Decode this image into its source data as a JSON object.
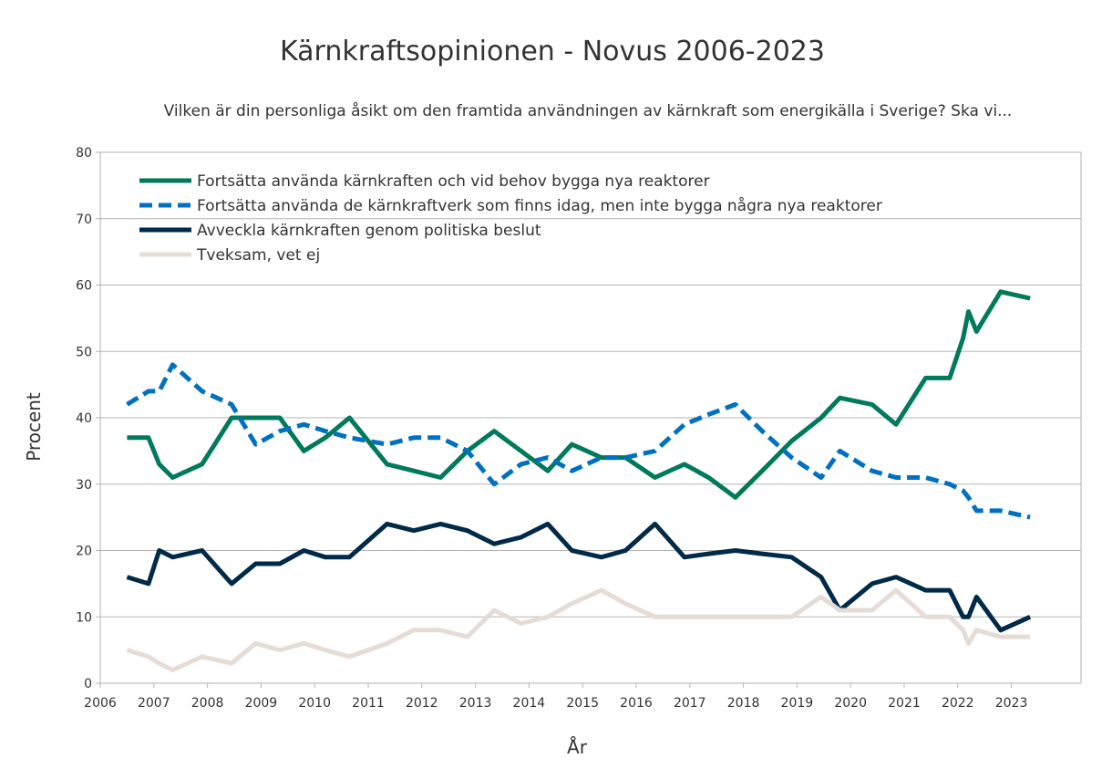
{
  "chart_data": {
    "type": "line",
    "title": "Kärnkraftsopinionen - Novus 2006-2023",
    "subtitle": "Vilken är din personliga åsikt om den framtida användningen av kärnkraft som energikälla i Sverige? Ska vi...",
    "xlabel": "År",
    "ylabel": "Procent",
    "xlim": [
      2006,
      2024.3
    ],
    "ylim": [
      0,
      80
    ],
    "xticks": [
      2006,
      2007,
      2008,
      2009,
      2010,
      2011,
      2012,
      2013,
      2014,
      2015,
      2016,
      2017,
      2018,
      2019,
      2020,
      2021,
      2022,
      2023
    ],
    "yticks": [
      0,
      10,
      20,
      30,
      40,
      50,
      60,
      70,
      80
    ],
    "grid": "horizontal",
    "legend_position": "top-left",
    "series": [
      {
        "name": "Fortsätta använda kärnkraften och vid behov bygga nya reaktorer",
        "color": "#007a5a",
        "style": "solid",
        "points": [
          [
            2006.5,
            37
          ],
          [
            2006.9,
            37
          ],
          [
            2007.1,
            33
          ],
          [
            2007.35,
            31
          ],
          [
            2007.9,
            33
          ],
          [
            2008.45,
            40
          ],
          [
            2008.9,
            40
          ],
          [
            2009.35,
            40
          ],
          [
            2009.8,
            35
          ],
          [
            2010.2,
            37
          ],
          [
            2010.65,
            40
          ],
          [
            2011.35,
            33
          ],
          [
            2011.85,
            32
          ],
          [
            2012.35,
            31
          ],
          [
            2012.85,
            35
          ],
          [
            2013.35,
            38
          ],
          [
            2013.85,
            35
          ],
          [
            2014.35,
            32
          ],
          [
            2014.8,
            36
          ],
          [
            2015.35,
            34
          ],
          [
            2015.8,
            34
          ],
          [
            2016.35,
            31
          ],
          [
            2016.9,
            33
          ],
          [
            2017.35,
            31
          ],
          [
            2017.85,
            28
          ],
          [
            2018.35,
            32
          ],
          [
            2018.9,
            36.5
          ],
          [
            2019.45,
            40
          ],
          [
            2019.8,
            43
          ],
          [
            2020.4,
            42
          ],
          [
            2020.85,
            39
          ],
          [
            2021.4,
            46
          ],
          [
            2021.85,
            46
          ],
          [
            2022.1,
            52
          ],
          [
            2022.2,
            56
          ],
          [
            2022.35,
            53
          ],
          [
            2022.8,
            59
          ],
          [
            2023.35,
            58
          ]
        ]
      },
      {
        "name": "Fortsätta använda de kärnkraftverk som finns idag, men inte bygga några nya reaktorer",
        "color": "#0070c0",
        "style": "dashed",
        "points": [
          [
            2006.5,
            42
          ],
          [
            2006.9,
            44
          ],
          [
            2007.1,
            44
          ],
          [
            2007.35,
            48
          ],
          [
            2007.9,
            44
          ],
          [
            2008.45,
            42
          ],
          [
            2008.9,
            36
          ],
          [
            2009.35,
            38
          ],
          [
            2009.8,
            39
          ],
          [
            2010.2,
            38
          ],
          [
            2010.65,
            37
          ],
          [
            2011.35,
            36
          ],
          [
            2011.85,
            37
          ],
          [
            2012.35,
            37
          ],
          [
            2012.85,
            35
          ],
          [
            2013.35,
            30
          ],
          [
            2013.85,
            33
          ],
          [
            2014.35,
            34
          ],
          [
            2014.8,
            32
          ],
          [
            2015.35,
            34
          ],
          [
            2015.8,
            34
          ],
          [
            2016.35,
            35
          ],
          [
            2016.9,
            39
          ],
          [
            2017.35,
            40.5
          ],
          [
            2017.85,
            42
          ],
          [
            2018.35,
            38
          ],
          [
            2018.9,
            34
          ],
          [
            2019.45,
            31
          ],
          [
            2019.8,
            35
          ],
          [
            2020.4,
            32
          ],
          [
            2020.85,
            31
          ],
          [
            2021.4,
            31
          ],
          [
            2021.85,
            30
          ],
          [
            2022.1,
            29
          ],
          [
            2022.2,
            28
          ],
          [
            2022.35,
            26
          ],
          [
            2022.8,
            26
          ],
          [
            2023.35,
            25
          ]
        ]
      },
      {
        "name": "Avveckla kärnkraften genom politiska beslut",
        "color": "#002a48",
        "style": "solid",
        "points": [
          [
            2006.5,
            16
          ],
          [
            2006.9,
            15
          ],
          [
            2007.1,
            20
          ],
          [
            2007.35,
            19
          ],
          [
            2007.9,
            20
          ],
          [
            2008.45,
            15
          ],
          [
            2008.9,
            18
          ],
          [
            2009.35,
            18
          ],
          [
            2009.8,
            20
          ],
          [
            2010.2,
            19
          ],
          [
            2010.65,
            19
          ],
          [
            2011.35,
            24
          ],
          [
            2011.85,
            23
          ],
          [
            2012.35,
            24
          ],
          [
            2012.85,
            23
          ],
          [
            2013.35,
            21
          ],
          [
            2013.85,
            22
          ],
          [
            2014.35,
            24
          ],
          [
            2014.8,
            20
          ],
          [
            2015.35,
            19
          ],
          [
            2015.8,
            20
          ],
          [
            2016.35,
            24
          ],
          [
            2016.9,
            19
          ],
          [
            2017.35,
            19.5
          ],
          [
            2017.85,
            20
          ],
          [
            2018.35,
            19.5
          ],
          [
            2018.9,
            19
          ],
          [
            2019.45,
            16
          ],
          [
            2019.8,
            11
          ],
          [
            2020.4,
            15
          ],
          [
            2020.85,
            16
          ],
          [
            2021.4,
            14
          ],
          [
            2021.85,
            14
          ],
          [
            2022.1,
            10
          ],
          [
            2022.2,
            10
          ],
          [
            2022.35,
            13
          ],
          [
            2022.8,
            8
          ],
          [
            2023.35,
            10
          ]
        ]
      },
      {
        "name": "Tveksam, vet ej",
        "color": "#e6dcd5",
        "style": "solid",
        "points": [
          [
            2006.5,
            5
          ],
          [
            2006.9,
            4
          ],
          [
            2007.1,
            3
          ],
          [
            2007.35,
            2
          ],
          [
            2007.9,
            4
          ],
          [
            2008.45,
            3
          ],
          [
            2008.9,
            6
          ],
          [
            2009.35,
            5
          ],
          [
            2009.8,
            6
          ],
          [
            2010.2,
            5
          ],
          [
            2010.65,
            4
          ],
          [
            2011.35,
            6
          ],
          [
            2011.85,
            8
          ],
          [
            2012.35,
            8
          ],
          [
            2012.85,
            7
          ],
          [
            2013.35,
            11
          ],
          [
            2013.85,
            9
          ],
          [
            2014.35,
            10
          ],
          [
            2014.8,
            12
          ],
          [
            2015.35,
            14
          ],
          [
            2015.8,
            12
          ],
          [
            2016.35,
            10
          ],
          [
            2016.9,
            10
          ],
          [
            2017.35,
            10
          ],
          [
            2017.85,
            10
          ],
          [
            2018.35,
            10
          ],
          [
            2018.9,
            10
          ],
          [
            2019.45,
            13
          ],
          [
            2019.8,
            11
          ],
          [
            2020.4,
            11
          ],
          [
            2020.85,
            14
          ],
          [
            2021.4,
            10
          ],
          [
            2021.85,
            10
          ],
          [
            2022.1,
            8
          ],
          [
            2022.2,
            6
          ],
          [
            2022.35,
            8
          ],
          [
            2022.8,
            7
          ],
          [
            2023.35,
            7
          ]
        ]
      }
    ]
  }
}
